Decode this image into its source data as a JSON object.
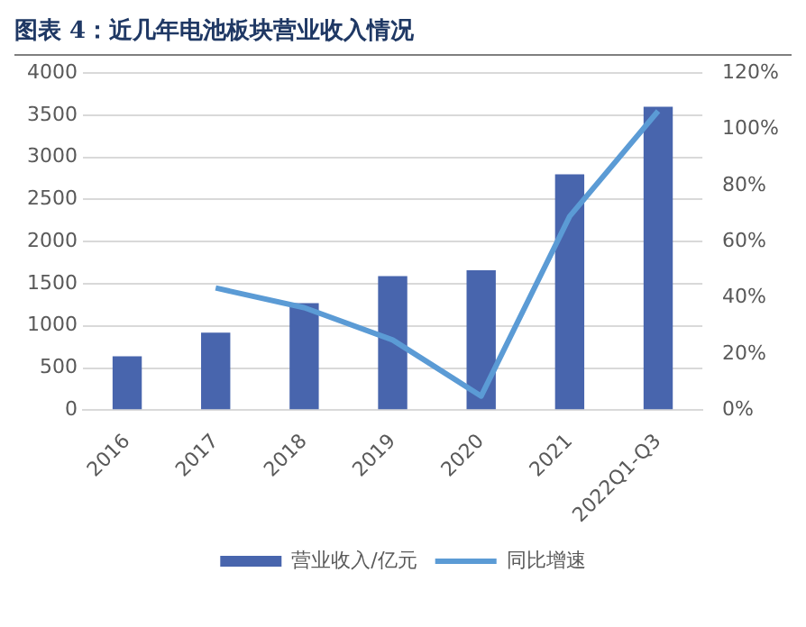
{
  "chart_data": {
    "type": "bar",
    "title": "图表 4：近几年电池板块营业收入情况",
    "categories": [
      "2016",
      "2017",
      "2018",
      "2019",
      "2020",
      "2021",
      "2022Q1-Q3"
    ],
    "series": [
      {
        "name": "营业收入/亿元",
        "color": "#4865ad",
        "values": [
          640,
          920,
          1270,
          1590,
          1660,
          2800,
          3600
        ]
      },
      {
        "name": "同比增速",
        "type": "line",
        "axis": "y2",
        "color": "#5b9bd5",
        "values": [
          null,
          43.5,
          36.5,
          25,
          5,
          69,
          106.5
        ]
      }
    ],
    "ylim": [
      0,
      4000
    ],
    "yticks": [
      0,
      500,
      1000,
      1500,
      2000,
      2500,
      3000,
      3500,
      4000
    ],
    "y2lim": [
      0,
      120
    ],
    "y2ticks": [
      {
        "value": 0,
        "label": "0%"
      },
      {
        "value": 20,
        "label": "20%"
      },
      {
        "value": 40,
        "label": "40%"
      },
      {
        "value": 60,
        "label": "60%"
      },
      {
        "value": 80,
        "label": "80%"
      },
      {
        "value": 100,
        "label": "100%"
      },
      {
        "value": 120,
        "label": "120%"
      }
    ],
    "grid": "y",
    "legend": "bottom",
    "marker": "none"
  }
}
